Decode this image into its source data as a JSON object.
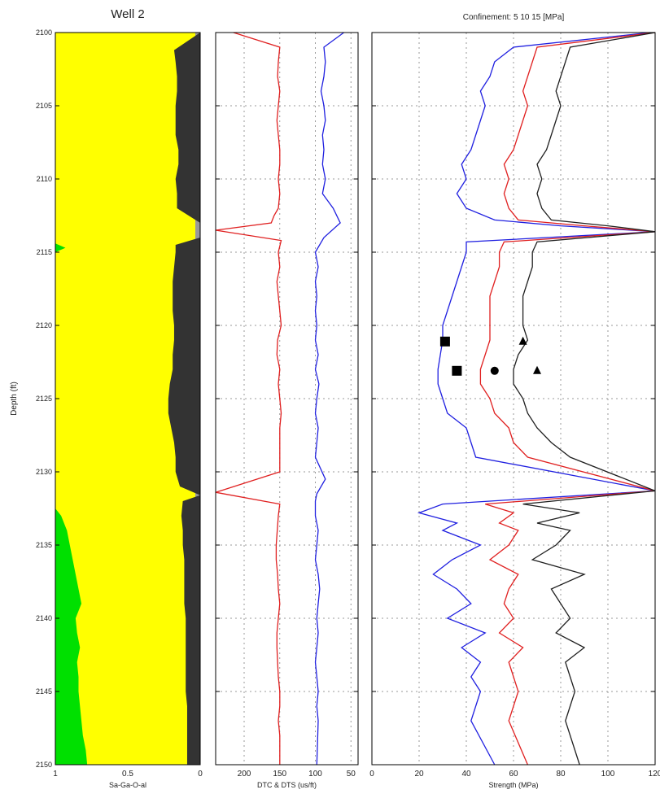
{
  "chart_data": [
    {
      "type": "area",
      "title": "Well 2",
      "ylabel": "Depth (ft)",
      "xlabel": "Sa-Ga-O-al",
      "ylim": [
        2150,
        2100
      ],
      "xlim": [
        1,
        0
      ],
      "xticks": [
        "1",
        "0.5",
        "0"
      ],
      "yticks": [
        "2100",
        "2105",
        "2110",
        "2115",
        "2120",
        "2125",
        "2130",
        "2135",
        "2140",
        "2145",
        "2150"
      ],
      "colors": {
        "fill": "#ffff00",
        "shale": "#333333",
        "sand": "#00e000",
        "edge": "#999999"
      },
      "shale_boundary": [
        [
          2100,
          0.0
        ],
        [
          2101.2,
          0.18
        ],
        [
          2102,
          0.17
        ],
        [
          2103,
          0.16
        ],
        [
          2104,
          0.16
        ],
        [
          2105,
          0.17
        ],
        [
          2106,
          0.17
        ],
        [
          2107,
          0.17
        ],
        [
          2108,
          0.15
        ],
        [
          2109,
          0.15
        ],
        [
          2110,
          0.17
        ],
        [
          2111,
          0.16
        ],
        [
          2112,
          0.16
        ],
        [
          2112.5,
          0.08
        ],
        [
          2113,
          0.0
        ],
        [
          2114,
          0.0
        ],
        [
          2114.5,
          0.17
        ],
        [
          2115,
          0.17
        ],
        [
          2116,
          0.18
        ],
        [
          2117,
          0.19
        ],
        [
          2118,
          0.19
        ],
        [
          2119,
          0.19
        ],
        [
          2120,
          0.18
        ],
        [
          2121,
          0.18
        ],
        [
          2122,
          0.19
        ],
        [
          2123,
          0.19
        ],
        [
          2124,
          0.21
        ],
        [
          2125,
          0.22
        ],
        [
          2126,
          0.22
        ],
        [
          2127,
          0.2
        ],
        [
          2128,
          0.18
        ],
        [
          2129,
          0.17
        ],
        [
          2130,
          0.17
        ],
        [
          2131,
          0.14
        ],
        [
          2131.6,
          0.0
        ],
        [
          2132,
          0.12
        ],
        [
          2133,
          0.13
        ],
        [
          2134,
          0.12
        ],
        [
          2135,
          0.12
        ],
        [
          2136,
          0.11
        ],
        [
          2137,
          0.11
        ],
        [
          2138,
          0.11
        ],
        [
          2139,
          0.11
        ],
        [
          2140,
          0.1
        ],
        [
          2141,
          0.1
        ],
        [
          2142,
          0.1
        ],
        [
          2143,
          0.1
        ],
        [
          2144,
          0.1
        ],
        [
          2145,
          0.1
        ],
        [
          2146,
          0.09
        ],
        [
          2147,
          0.09
        ],
        [
          2148,
          0.09
        ],
        [
          2149,
          0.09
        ],
        [
          2150,
          0.09
        ]
      ],
      "sand_boundary": [
        [
          2114.4,
          1.0
        ],
        [
          2114.7,
          0.93
        ],
        [
          2115,
          1.0
        ],
        [
          2132.5,
          1.0
        ],
        [
          2133,
          0.96
        ],
        [
          2134,
          0.92
        ],
        [
          2135,
          0.9
        ],
        [
          2136,
          0.88
        ],
        [
          2137,
          0.86
        ],
        [
          2138,
          0.84
        ],
        [
          2139,
          0.82
        ],
        [
          2140,
          0.86
        ],
        [
          2141,
          0.85
        ],
        [
          2142,
          0.83
        ],
        [
          2143,
          0.85
        ],
        [
          2144,
          0.84
        ],
        [
          2145,
          0.84
        ],
        [
          2146,
          0.83
        ],
        [
          2147,
          0.82
        ],
        [
          2148,
          0.81
        ],
        [
          2149,
          0.79
        ],
        [
          2150,
          0.78
        ]
      ]
    },
    {
      "type": "line",
      "title": "",
      "xlabel": "DTC & DTS (us/ft)",
      "ylim": [
        2150,
        2100
      ],
      "xlim": [
        240,
        40
      ],
      "xticks": [
        "200",
        "150",
        "100",
        "50"
      ],
      "series": [
        {
          "color": "#e02020",
          "x": [
            215,
            150,
            152,
            153,
            150,
            152,
            154,
            152,
            150,
            150,
            152,
            150,
            152,
            158,
            162,
            240,
            148,
            152,
            150,
            154,
            152,
            150,
            148,
            153,
            154,
            150,
            152,
            150,
            148,
            150,
            150,
            240,
            150,
            152,
            155,
            155,
            153,
            152,
            150,
            152,
            154,
            154,
            153,
            152,
            150,
            150,
            152,
            150,
            150
          ],
          "y": [
            2100,
            2101,
            2102,
            2103,
            2104,
            2105,
            2106,
            2107,
            2108,
            2109,
            2110,
            2111,
            2112,
            2112.5,
            2113,
            2113.5,
            2114.2,
            2115,
            2116,
            2117,
            2118,
            2119,
            2120,
            2121,
            2122,
            2123,
            2124,
            2125,
            2126,
            2127,
            2130,
            2131.4,
            2132.2,
            2133,
            2135,
            2136,
            2137,
            2138,
            2139,
            2140,
            2141,
            2142,
            2143,
            2144,
            2145,
            2146,
            2147,
            2148,
            2150
          ]
        },
        {
          "color": "#2020e0",
          "x": [
            60,
            88,
            86,
            88,
            92,
            88,
            86,
            90,
            88,
            90,
            86,
            90,
            75,
            65,
            88,
            100,
            96,
            100,
            98,
            100,
            98,
            100,
            96,
            100,
            95,
            98,
            100,
            96,
            98,
            100,
            86,
            98,
            100,
            100,
            96,
            98,
            100,
            96,
            94,
            96,
            98,
            96,
            98,
            100,
            98,
            96,
            98,
            96,
            98
          ],
          "y": [
            2100,
            2101,
            2102,
            2103,
            2104,
            2105,
            2106,
            2107,
            2108,
            2109,
            2110,
            2111,
            2112,
            2113,
            2114,
            2115,
            2116,
            2117,
            2118,
            2119,
            2120,
            2121,
            2122,
            2123,
            2124,
            2125,
            2126,
            2127,
            2128,
            2129,
            2130.5,
            2131.5,
            2132,
            2133,
            2134,
            2135,
            2136,
            2137,
            2138,
            2139,
            2140,
            2141,
            2142,
            2143,
            2144,
            2145,
            2146,
            2147,
            2150
          ]
        }
      ]
    },
    {
      "type": "line",
      "title": "Confinement: 5 10 15 [MPa]",
      "xlabel": "Strength (MPa)",
      "ylim": [
        2150,
        2100
      ],
      "xlim": [
        0,
        120
      ],
      "xticks": [
        "0",
        "20",
        "40",
        "60",
        "80",
        "100",
        "120"
      ],
      "series": [
        {
          "color": "#2020e0",
          "x": [
            118,
            60,
            52,
            50,
            46,
            48,
            46,
            44,
            42,
            38,
            40,
            36,
            40,
            52,
            80,
            120,
            40,
            40,
            38,
            36,
            34,
            32,
            30,
            30,
            29,
            28,
            28,
            30,
            32,
            40,
            42,
            44,
            120,
            30,
            20,
            36,
            30,
            46,
            34,
            26,
            36,
            42,
            32,
            48,
            38,
            46,
            42,
            46,
            44,
            42,
            52
          ],
          "y": [
            2100,
            2101,
            2102,
            2103,
            2104,
            2105,
            2106,
            2107,
            2108,
            2109,
            2110,
            2111,
            2112,
            2112.8,
            2113.2,
            2113.6,
            2114.3,
            2115,
            2116,
            2117,
            2118,
            2119,
            2120,
            2121,
            2122,
            2123,
            2124,
            2125,
            2126,
            2127,
            2128,
            2129,
            2131.3,
            2132.2,
            2132.8,
            2133.5,
            2134,
            2135,
            2136,
            2137,
            2138,
            2139,
            2140,
            2141,
            2142,
            2143,
            2144,
            2145,
            2146,
            2147,
            2150
          ]
        },
        {
          "color": "#e02020",
          "x": [
            120,
            70,
            68,
            66,
            64,
            66,
            64,
            62,
            60,
            56,
            58,
            56,
            58,
            62,
            90,
            120,
            56,
            54,
            54,
            52,
            50,
            50,
            50,
            50,
            48,
            46,
            46,
            50,
            52,
            58,
            60,
            66,
            120,
            48,
            60,
            54,
            62,
            58,
            50,
            62,
            58,
            56,
            60,
            54,
            64,
            58,
            60,
            62,
            60,
            58,
            66
          ],
          "y": [
            2100,
            2101,
            2102,
            2103,
            2104,
            2105,
            2106,
            2107,
            2108,
            2109,
            2110,
            2111,
            2112,
            2112.8,
            2113.2,
            2113.6,
            2114.3,
            2115,
            2116,
            2117,
            2118,
            2119,
            2120,
            2121,
            2122,
            2123,
            2124,
            2125,
            2126,
            2127,
            2128,
            2129,
            2131.3,
            2132.2,
            2132.8,
            2133.5,
            2134,
            2135,
            2136,
            2137,
            2138,
            2139,
            2140,
            2141,
            2142,
            2143,
            2144,
            2145,
            2146,
            2147,
            2150
          ]
        },
        {
          "color": "#202020",
          "x": [
            120,
            84,
            82,
            80,
            78,
            80,
            78,
            76,
            74,
            70,
            72,
            70,
            72,
            76,
            100,
            120,
            70,
            68,
            68,
            66,
            64,
            64,
            64,
            66,
            62,
            60,
            60,
            64,
            66,
            70,
            76,
            84,
            120,
            64,
            88,
            70,
            84,
            78,
            68,
            90,
            76,
            80,
            84,
            78,
            90,
            82,
            84,
            86,
            84,
            82,
            88
          ],
          "y": [
            2100,
            2101,
            2102,
            2103,
            2104,
            2105,
            2106,
            2107,
            2108,
            2109,
            2110,
            2111,
            2112,
            2112.8,
            2113.2,
            2113.6,
            2114.3,
            2115,
            2116,
            2117,
            2118,
            2119,
            2120,
            2121,
            2122,
            2123,
            2124,
            2125,
            2126,
            2127,
            2128,
            2129,
            2131.3,
            2132.2,
            2132.8,
            2133.5,
            2134,
            2135,
            2136,
            2137,
            2138,
            2139,
            2140,
            2141,
            2142,
            2143,
            2144,
            2145,
            2146,
            2147,
            2150
          ]
        }
      ],
      "markers": [
        {
          "shape": "square",
          "x": [
            31,
            36
          ],
          "y": [
            2121.1,
            2123.1
          ]
        },
        {
          "shape": "circle",
          "x": [
            52
          ],
          "y": [
            2123.1
          ]
        },
        {
          "shape": "triangle",
          "x": [
            64,
            70
          ],
          "y": [
            2121.1,
            2123.1
          ]
        }
      ]
    }
  ]
}
